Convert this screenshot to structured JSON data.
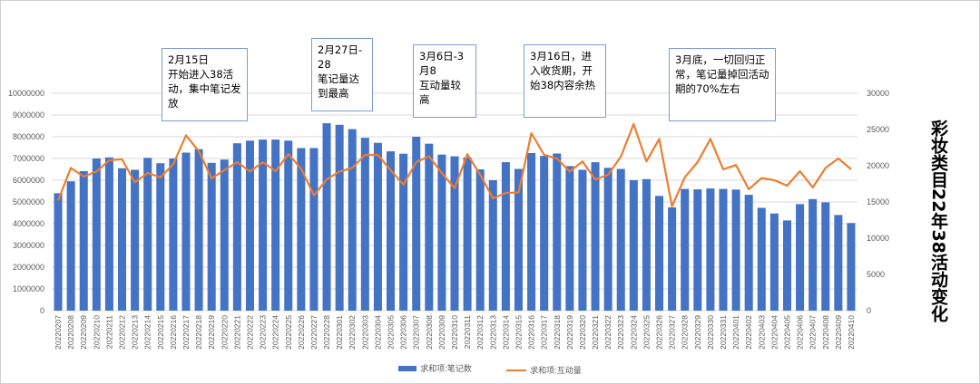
{
  "chart_data": {
    "type": "bar+line",
    "title": "彩妆类目22年38活动变化",
    "categories": [
      "20220207",
      "20220208",
      "20220209",
      "20220210",
      "20220211",
      "20220212",
      "20220213",
      "20220214",
      "20220215",
      "20220216",
      "20220217",
      "20220218",
      "20220219",
      "20220220",
      "20220221",
      "20220222",
      "20220223",
      "20220224",
      "20220225",
      "20220226",
      "20220227",
      "20220228",
      "20220301",
      "20220302",
      "20220303",
      "20220304",
      "20220305",
      "20220306",
      "20220307",
      "20220308",
      "20220309",
      "20220310",
      "20220311",
      "20220312",
      "20220313",
      "20220314",
      "20220315",
      "20220316",
      "20220317",
      "20220318",
      "20220319",
      "20220320",
      "20220321",
      "20220322",
      "20220323",
      "20220324",
      "20220325",
      "20220326",
      "20220327",
      "20220328",
      "20220329",
      "20220330",
      "20220331",
      "20220401",
      "20220402",
      "20220403",
      "20220404",
      "20220405",
      "20220406",
      "20220407",
      "20220408",
      "20220409",
      "20220410"
    ],
    "series": [
      {
        "name": "求和项:笔记数",
        "type": "bar",
        "axis": "left",
        "color": "#4472c4",
        "values": [
          5400000,
          5950000,
          6420000,
          7000000,
          7050000,
          6550000,
          6480000,
          7030000,
          6780000,
          7000000,
          7270000,
          7430000,
          6800000,
          6950000,
          7700000,
          7820000,
          7870000,
          7870000,
          7820000,
          7480000,
          7480000,
          8620000,
          8550000,
          8350000,
          7950000,
          7720000,
          7330000,
          7220000,
          8000000,
          7680000,
          7180000,
          7100000,
          7050000,
          6500000,
          6000000,
          6830000,
          6520000,
          7250000,
          7120000,
          7230000,
          6650000,
          6480000,
          6830000,
          6570000,
          6520000,
          6000000,
          6050000,
          5280000,
          4750000,
          5600000,
          5580000,
          5620000,
          5600000,
          5570000,
          5330000,
          4730000,
          4470000,
          4150000,
          4900000,
          5130000,
          4980000,
          4400000,
          4030000
        ]
      },
      {
        "name": "求和项:互动量",
        "type": "line",
        "axis": "right",
        "color": "#ed7d31",
        "values": [
          15200,
          19700,
          18500,
          19200,
          20750,
          20900,
          17700,
          19000,
          18400,
          20200,
          24200,
          22000,
          18250,
          19400,
          20500,
          19200,
          20500,
          19250,
          21600,
          19600,
          15900,
          18100,
          19200,
          19700,
          21500,
          21500,
          19400,
          17400,
          20500,
          21300,
          19000,
          16900,
          21600,
          18750,
          15500,
          16250,
          16300,
          24500,
          21500,
          21000,
          19200,
          20600,
          18100,
          18750,
          21250,
          25750,
          20600,
          23700,
          14400,
          18400,
          20500,
          23700,
          19500,
          20100,
          16750,
          18300,
          18000,
          17250,
          19250,
          17000,
          19700,
          21000,
          19500
        ]
      }
    ],
    "y_left": {
      "range": [
        0,
        10000000
      ],
      "ticks": [
        "0",
        "1000000",
        "2000000",
        "3000000",
        "4000000",
        "5000000",
        "6000000",
        "7000000",
        "8000000",
        "9000000",
        "10000000"
      ]
    },
    "y_right": {
      "range": [
        0,
        30000
      ],
      "ticks": [
        "0",
        "5000",
        "10000",
        "15000",
        "20000",
        "25000",
        "30000"
      ]
    },
    "grid": true,
    "legend": "bottom",
    "annotations": [
      "2月15日\n开始进入38活动，集中笔记发放",
      "2月27日-\n28\n笔记量达到最高",
      "3月6日-3\n月8\n互动量较高",
      "3月16日，进入收货期，开始38内容余热",
      "3月底，一切回归正常，笔记量掉回活动期的70%左右"
    ]
  }
}
